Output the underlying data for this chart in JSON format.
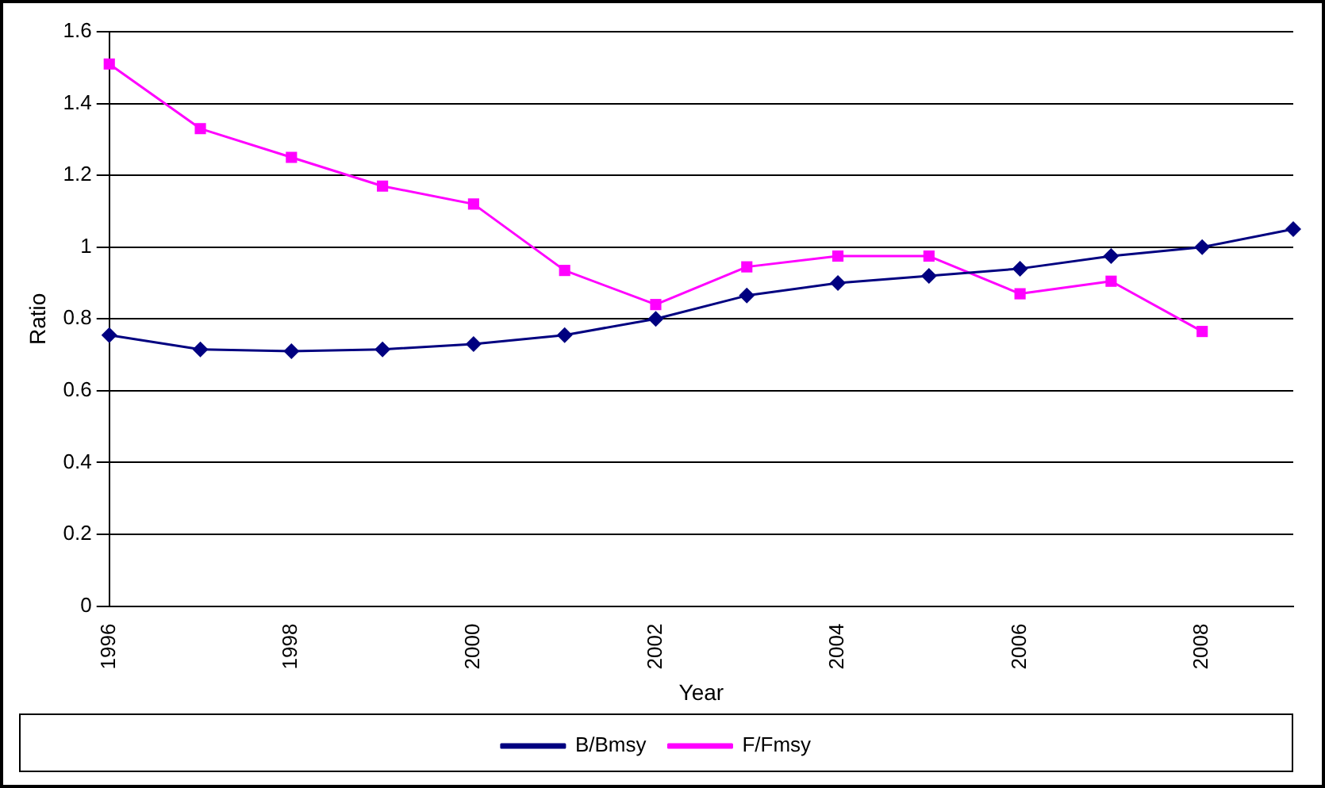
{
  "chart_data": {
    "type": "line",
    "xlabel": "Year",
    "ylabel": "Ratio",
    "categories": [
      "1996",
      null,
      "1998",
      null,
      "2000",
      null,
      "2002",
      null,
      "2004",
      null,
      "2006",
      null,
      "2008",
      null
    ],
    "series": [
      {
        "name": "B/Bmsy",
        "color": "#000080",
        "marker": "diamond",
        "values": [
          0.755,
          0.715,
          0.71,
          0.715,
          0.73,
          0.755,
          0.8,
          0.865,
          0.9,
          0.92,
          0.94,
          0.975,
          1.0,
          1.05
        ]
      },
      {
        "name": "F/Fmsy",
        "color": "#ff00ff",
        "marker": "square",
        "values": [
          1.51,
          1.33,
          1.25,
          1.17,
          1.12,
          0.935,
          0.84,
          0.945,
          0.975,
          0.975,
          0.87,
          0.905,
          0.765,
          null
        ]
      }
    ],
    "ylim": [
      0,
      1.6
    ],
    "yticks": [
      0,
      0.2,
      0.4,
      0.6,
      0.8,
      1,
      1.2,
      1.4,
      1.6
    ],
    "grid": "y",
    "legend": "bottom"
  }
}
